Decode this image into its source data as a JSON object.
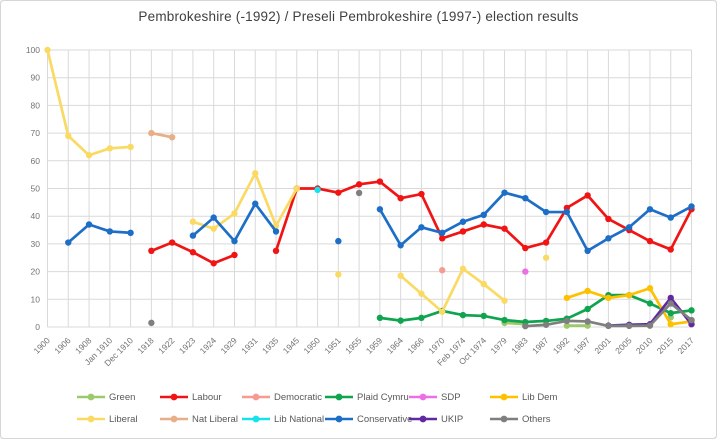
{
  "chart_data": {
    "type": "line",
    "title": "Pembrokeshire (-1992) / Preseli Pembrokeshire (1997-) election results",
    "xlabel": "",
    "ylabel": "",
    "ylim": [
      0,
      100
    ],
    "y_ticks": [
      0,
      10,
      20,
      30,
      40,
      50,
      60,
      70,
      80,
      90,
      100
    ],
    "grid": true,
    "legend_position": "bottom",
    "categories": [
      "1900",
      "1906",
      "1908",
      "Jan 1910",
      "Dec 1910",
      "1918",
      "1922",
      "1923",
      "1924",
      "1929",
      "1931",
      "1935",
      "1945",
      "1950",
      "1951",
      "1955",
      "1959",
      "1964",
      "1966",
      "1970",
      "Feb 1974",
      "Oct 1974",
      "1979",
      "1983",
      "1987",
      "1992",
      "1997",
      "2001",
      "2005",
      "2010",
      "2015",
      "2017"
    ],
    "series": [
      {
        "name": "Green",
        "color": "#9cc96a",
        "values": [
          null,
          null,
          null,
          null,
          null,
          null,
          null,
          null,
          null,
          null,
          null,
          null,
          null,
          null,
          null,
          null,
          null,
          null,
          null,
          null,
          null,
          null,
          1.5,
          1,
          null,
          0.5,
          0.5,
          null,
          null,
          null,
          3.5,
          null
        ]
      },
      {
        "name": "Labour",
        "color": "#f01414",
        "values": [
          null,
          null,
          null,
          null,
          null,
          27.5,
          30.5,
          27,
          23,
          26,
          null,
          27.5,
          50,
          50,
          48.5,
          51.5,
          52.5,
          46.5,
          48,
          32,
          34.5,
          37,
          35.5,
          28.5,
          30.5,
          43,
          47.5,
          39,
          35,
          31,
          28,
          42.5
        ]
      },
      {
        "name": "Democratic",
        "color": "#f59b94",
        "values": [
          null,
          null,
          null,
          null,
          null,
          null,
          null,
          null,
          null,
          null,
          null,
          null,
          null,
          null,
          null,
          null,
          null,
          null,
          null,
          20.5,
          null,
          null,
          null,
          null,
          null,
          null,
          null,
          null,
          null,
          null,
          null,
          null
        ]
      },
      {
        "name": "Plaid Cymru",
        "color": "#0fa44f",
        "values": [
          null,
          null,
          null,
          null,
          null,
          null,
          null,
          null,
          null,
          null,
          null,
          null,
          null,
          null,
          null,
          null,
          3.3,
          2.3,
          3.3,
          5.8,
          4.3,
          4,
          2.5,
          1.8,
          2.2,
          3,
          6.5,
          11.5,
          11.5,
          8.5,
          5,
          6
        ]
      },
      {
        "name": "SDP",
        "color": "#ed6fe5",
        "values": [
          null,
          null,
          null,
          null,
          null,
          null,
          null,
          null,
          null,
          null,
          null,
          null,
          null,
          null,
          null,
          null,
          null,
          null,
          null,
          null,
          null,
          null,
          null,
          20,
          null,
          null,
          null,
          null,
          null,
          null,
          null,
          null
        ]
      },
      {
        "name": "Lib Dem",
        "color": "#ffc000",
        "values": [
          null,
          null,
          null,
          null,
          null,
          null,
          null,
          null,
          null,
          null,
          null,
          null,
          null,
          null,
          null,
          null,
          null,
          null,
          null,
          null,
          null,
          null,
          null,
          null,
          null,
          10.5,
          13,
          10.5,
          11.5,
          14,
          1,
          2
        ]
      },
      {
        "name": "Liberal",
        "color": "#fada63",
        "values": [
          100,
          69,
          62,
          64.5,
          65,
          null,
          null,
          38,
          35.5,
          41,
          55.5,
          36.5,
          50,
          null,
          19,
          null,
          null,
          18.5,
          12,
          5.5,
          21,
          15.5,
          9.5,
          null,
          25,
          null,
          null,
          null,
          null,
          null,
          null,
          null
        ]
      },
      {
        "name": "Nat Liberal",
        "color": "#e7ae88",
        "values": [
          null,
          null,
          null,
          null,
          null,
          70,
          68.5,
          null,
          null,
          null,
          null,
          null,
          null,
          null,
          null,
          null,
          null,
          null,
          null,
          null,
          null,
          null,
          null,
          null,
          null,
          null,
          null,
          null,
          null,
          null,
          null,
          null
        ]
      },
      {
        "name": "Lib National",
        "color": "#16e2ef",
        "values": [
          null,
          null,
          null,
          null,
          null,
          null,
          null,
          null,
          null,
          null,
          null,
          null,
          null,
          49.5,
          null,
          null,
          null,
          null,
          null,
          null,
          null,
          null,
          null,
          null,
          null,
          null,
          null,
          null,
          null,
          null,
          null,
          null
        ]
      },
      {
        "name": "Conservative",
        "color": "#1d6ec6",
        "values": [
          null,
          30.5,
          37,
          34.5,
          34,
          null,
          null,
          33,
          39.5,
          31,
          44.5,
          34.5,
          null,
          null,
          31,
          null,
          42.5,
          29.5,
          36,
          34,
          38,
          40.5,
          48.5,
          46.5,
          41.5,
          41.5,
          27.5,
          32,
          36,
          42.5,
          39.5,
          43.5
        ]
      },
      {
        "name": "UKIP",
        "color": "#6129a1",
        "values": [
          null,
          null,
          null,
          null,
          null,
          null,
          null,
          null,
          null,
          null,
          null,
          null,
          null,
          null,
          null,
          null,
          null,
          null,
          null,
          null,
          null,
          null,
          null,
          null,
          null,
          null,
          null,
          0.5,
          0.8,
          1,
          10.5,
          1
        ]
      },
      {
        "name": "Others",
        "color": "#7f7f7f",
        "values": [
          null,
          null,
          null,
          null,
          null,
          1.5,
          null,
          null,
          null,
          null,
          null,
          null,
          null,
          null,
          null,
          48.4,
          null,
          null,
          null,
          null,
          null,
          null,
          null,
          0.3,
          0.8,
          2.2,
          2,
          0.4,
          0.4,
          0.5,
          8.5,
          2.5
        ]
      }
    ],
    "legend_rows": [
      [
        "Green",
        "Labour",
        "Democratic",
        "Plaid Cymru",
        "SDP",
        "Lib Dem"
      ],
      [
        "Liberal",
        "Nat Liberal",
        "Lib National",
        "Conservative",
        "UKIP",
        "Others"
      ]
    ]
  },
  "style": {
    "grid_color": "#d9d9d9",
    "tick_color": "#737373",
    "title_color": "#3f3f3f",
    "legend_text_color": "#595959"
  }
}
